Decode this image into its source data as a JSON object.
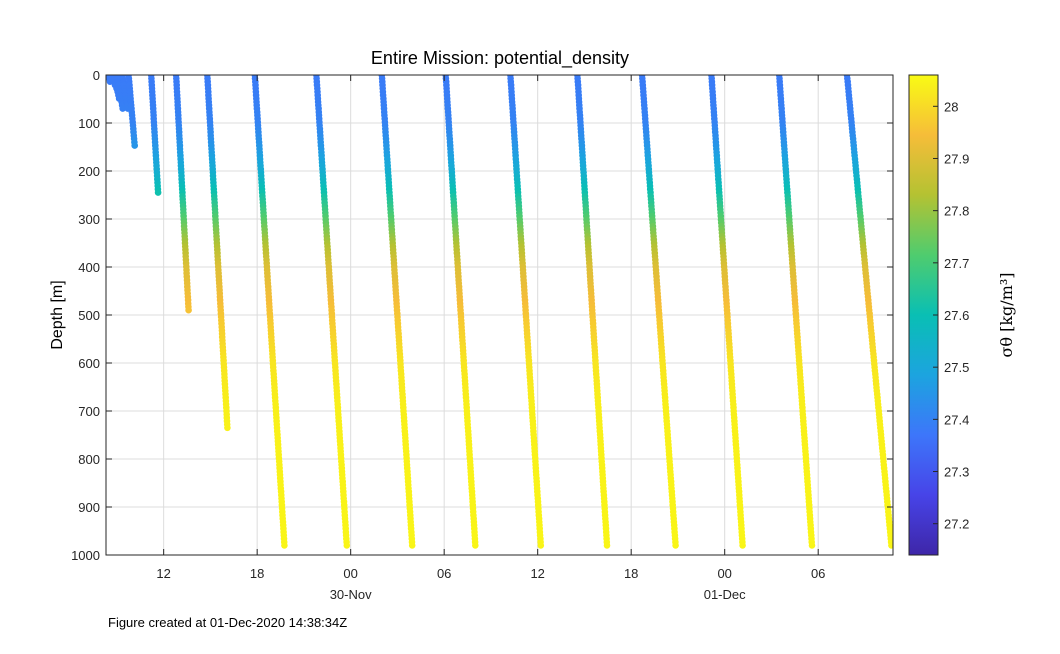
{
  "chart_data": {
    "type": "scatter",
    "title": "Entire Mission: potential_density",
    "ylabel": "Depth [m]",
    "xlabel": "",
    "ylim": [
      1000,
      0
    ],
    "yticks": [
      0,
      100,
      200,
      300,
      400,
      500,
      600,
      700,
      800,
      900,
      1000
    ],
    "xrange_hours": [
      8.3,
      58.8
    ],
    "xticks": [
      {
        "hour": 12,
        "label": "12"
      },
      {
        "hour": 18,
        "label": "18"
      },
      {
        "hour": 24,
        "label": "00"
      },
      {
        "hour": 30,
        "label": "06"
      },
      {
        "hour": 36,
        "label": "12"
      },
      {
        "hour": 42,
        "label": "18"
      },
      {
        "hour": 48,
        "label": "00"
      },
      {
        "hour": 54,
        "label": "06"
      }
    ],
    "date_labels": [
      {
        "hour": 24,
        "label": "30-Nov"
      },
      {
        "hour": 48,
        "label": "01-Dec"
      }
    ],
    "grid": true,
    "colorbar": {
      "label": "σθ [kg/m³]",
      "clim": [
        27.14,
        28.06
      ],
      "ticks": [
        27.2,
        27.3,
        27.4,
        27.5,
        27.6,
        27.7,
        27.8,
        27.9,
        28
      ]
    },
    "profiles": [
      {
        "start_hour": 8.45,
        "end_hour": 8.6,
        "max_depth": 20
      },
      {
        "start_hour": 8.6,
        "end_hour": 9.0,
        "max_depth": 30
      },
      {
        "start_hour": 8.8,
        "end_hour": 9.15,
        "max_depth": 50
      },
      {
        "start_hour": 9.0,
        "end_hour": 9.4,
        "max_depth": 75
      },
      {
        "start_hour": 9.35,
        "end_hour": 9.7,
        "max_depth": 70
      },
      {
        "start_hour": 9.75,
        "end_hour": 10.15,
        "max_depth": 150
      },
      {
        "start_hour": 11.2,
        "end_hour": 11.65,
        "max_depth": 250
      },
      {
        "start_hour": 12.8,
        "end_hour": 13.6,
        "max_depth": 490
      },
      {
        "start_hour": 14.8,
        "end_hour": 16.1,
        "max_depth": 740
      },
      {
        "start_hour": 17.85,
        "end_hour": 19.75,
        "max_depth": 980
      },
      {
        "start_hour": 21.8,
        "end_hour": 23.75,
        "max_depth": 980
      },
      {
        "start_hour": 26.0,
        "end_hour": 27.95,
        "max_depth": 980
      },
      {
        "start_hour": 30.1,
        "end_hour": 32.0,
        "max_depth": 980
      },
      {
        "start_hour": 34.25,
        "end_hour": 36.2,
        "max_depth": 980
      },
      {
        "start_hour": 38.55,
        "end_hour": 40.45,
        "max_depth": 980
      },
      {
        "start_hour": 42.7,
        "end_hour": 44.85,
        "max_depth": 980
      },
      {
        "start_hour": 47.15,
        "end_hour": 49.15,
        "max_depth": 980
      },
      {
        "start_hour": 51.5,
        "end_hour": 53.6,
        "max_depth": 980
      },
      {
        "start_hour": 55.85,
        "end_hour": 58.7,
        "max_depth": 980
      }
    ],
    "density_profile": [
      {
        "depth": 0,
        "sigma": 27.38
      },
      {
        "depth": 100,
        "sigma": 27.4
      },
      {
        "depth": 150,
        "sigma": 27.45
      },
      {
        "depth": 200,
        "sigma": 27.52
      },
      {
        "depth": 250,
        "sigma": 27.62
      },
      {
        "depth": 300,
        "sigma": 27.72
      },
      {
        "depth": 350,
        "sigma": 27.82
      },
      {
        "depth": 400,
        "sigma": 27.9
      },
      {
        "depth": 450,
        "sigma": 27.93
      },
      {
        "depth": 500,
        "sigma": 27.96
      },
      {
        "depth": 600,
        "sigma": 28.02
      },
      {
        "depth": 700,
        "sigma": 28.04
      },
      {
        "depth": 1000,
        "sigma": 28.05
      }
    ]
  },
  "footer": "Figure created at 01-Dec-2020 14:38:34Z"
}
